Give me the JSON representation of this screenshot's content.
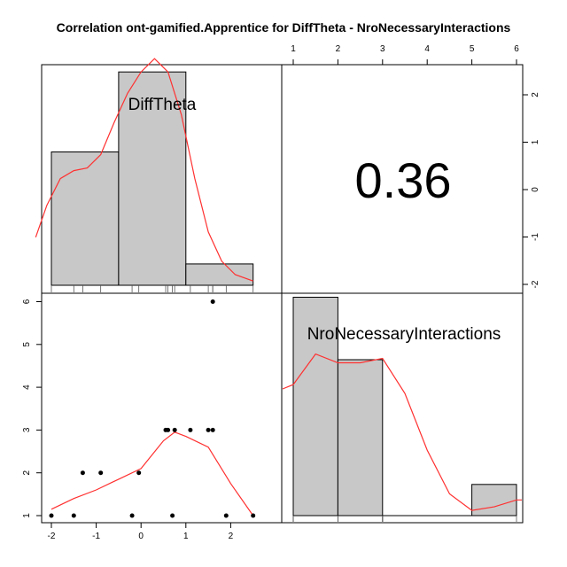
{
  "chart_data": {
    "type": "scatter-matrix",
    "title": "Correlation ont-gamified.Apprentice for DiffTheta - NroNecessaryInteractions",
    "variables": [
      "DiffTheta",
      "NroNecessaryInteractions"
    ],
    "correlation": "0.36",
    "diff_theta_ticks": [
      -2,
      -1,
      0,
      1,
      2
    ],
    "interactions_ticks": [
      1,
      2,
      3,
      4,
      5,
      6
    ],
    "diff_theta_histogram": {
      "bins": [
        [
          -2.0,
          -0.5
        ],
        [
          -0.5,
          1.0
        ],
        [
          1.0,
          2.5
        ]
      ],
      "density": [
        0.25,
        0.4,
        0.04
      ]
    },
    "interactions_histogram": {
      "bins": [
        [
          1,
          2
        ],
        [
          2,
          3
        ],
        [
          3,
          4
        ],
        [
          4,
          5
        ],
        [
          5,
          6
        ]
      ],
      "density": [
        0.5,
        0.357,
        0.0,
        0.0,
        0.0714
      ]
    },
    "diff_theta_density_curve": {
      "x": [
        -2.35,
        -2.1,
        -1.8,
        -1.5,
        -1.2,
        -0.9,
        -0.6,
        -0.3,
        0.0,
        0.3,
        0.6,
        0.9,
        1.2,
        1.5,
        1.8,
        2.1,
        2.5
      ],
      "y": [
        0.09,
        0.15,
        0.2,
        0.215,
        0.22,
        0.245,
        0.305,
        0.36,
        0.4,
        0.425,
        0.4,
        0.32,
        0.2,
        0.1,
        0.045,
        0.02,
        0.008
      ]
    },
    "interactions_density_curve": {
      "x": [
        1,
        1.5,
        2,
        2.5,
        3,
        3.5,
        4,
        4.5,
        5,
        5.5,
        6
      ],
      "y": [
        0.3,
        0.37,
        0.35,
        0.35,
        0.36,
        0.28,
        0.15,
        0.05,
        0.012,
        0.02,
        0.036
      ]
    },
    "points": [
      {
        "x": -2.0,
        "y": 1
      },
      {
        "x": -1.5,
        "y": 1
      },
      {
        "x": -1.3,
        "y": 2
      },
      {
        "x": -0.9,
        "y": 2
      },
      {
        "x": -0.2,
        "y": 1
      },
      {
        "x": -0.05,
        "y": 2
      },
      {
        "x": 0.55,
        "y": 3
      },
      {
        "x": 0.6,
        "y": 3
      },
      {
        "x": 0.7,
        "y": 1
      },
      {
        "x": 0.75,
        "y": 3
      },
      {
        "x": 1.1,
        "y": 3
      },
      {
        "x": 1.5,
        "y": 3
      },
      {
        "x": 1.6,
        "y": 3
      },
      {
        "x": 1.6,
        "y": 6
      },
      {
        "x": 1.9,
        "y": 1
      },
      {
        "x": 2.5,
        "y": 1
      }
    ],
    "smooth_line": {
      "x": [
        -2.0,
        -1.5,
        -1.0,
        -0.5,
        0.0,
        0.5,
        0.75,
        1.0,
        1.5,
        2.0,
        2.5
      ],
      "y": [
        1.15,
        1.4,
        1.6,
        1.85,
        2.1,
        2.75,
        2.95,
        2.85,
        2.6,
        1.75,
        1.0
      ]
    },
    "colors": {
      "bar_fill": "#c8c8c8",
      "smooth": "#ff3030",
      "points": "#000000"
    }
  }
}
